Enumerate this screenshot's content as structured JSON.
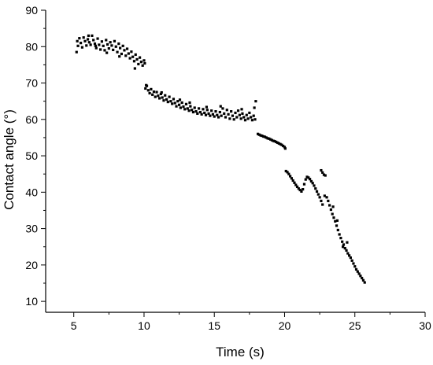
{
  "chart_data": {
    "type": "scatter",
    "title": "",
    "xlabel": "Time (s)",
    "ylabel": "Contact angle (°)",
    "xlim": [
      3,
      30
    ],
    "ylim": [
      7,
      90
    ],
    "x_ticks": [
      5,
      10,
      15,
      20,
      25,
      30
    ],
    "y_ticks": [
      10,
      20,
      30,
      40,
      50,
      60,
      70,
      80,
      90
    ],
    "grid": false,
    "marker_color": "#000000",
    "series": [
      {
        "points": [
          [
            5.2,
            78.5
          ],
          [
            5.3,
            80.2
          ],
          [
            5.4,
            82.3
          ],
          [
            5.5,
            81.0
          ],
          [
            5.6,
            79.8
          ],
          [
            5.7,
            82.5
          ],
          [
            5.8,
            81.5
          ],
          [
            5.9,
            80.3
          ],
          [
            6.0,
            82.0
          ],
          [
            6.1,
            81.2
          ],
          [
            6.2,
            80.5
          ],
          [
            6.3,
            83.0
          ],
          [
            6.4,
            81.8
          ],
          [
            6.5,
            80.8
          ],
          [
            6.6,
            79.6
          ],
          [
            6.7,
            82.2
          ],
          [
            6.8,
            80.5
          ],
          [
            6.9,
            79.2
          ],
          [
            7.0,
            81.4
          ],
          [
            7.1,
            80.2
          ],
          [
            7.2,
            79.0
          ],
          [
            7.3,
            81.8
          ],
          [
            7.4,
            80.6
          ],
          [
            7.5,
            79.5
          ],
          [
            7.6,
            81.2
          ],
          [
            7.7,
            80.3
          ],
          [
            7.8,
            79.1
          ],
          [
            7.9,
            81.5
          ],
          [
            8.0,
            80.0
          ],
          [
            8.1,
            78.5
          ],
          [
            8.2,
            80.8
          ],
          [
            8.3,
            79.6
          ],
          [
            8.4,
            78.0
          ],
          [
            8.5,
            80.2
          ],
          [
            8.6,
            79.0
          ],
          [
            8.7,
            77.5
          ],
          [
            8.8,
            79.4
          ],
          [
            8.9,
            78.1
          ],
          [
            9.0,
            76.8
          ],
          [
            9.1,
            78.6
          ],
          [
            9.2,
            77.2
          ],
          [
            9.3,
            76.0
          ],
          [
            9.4,
            77.8
          ],
          [
            9.5,
            76.5
          ],
          [
            9.6,
            75.2
          ],
          [
            9.7,
            77.0
          ],
          [
            9.8,
            75.8
          ],
          [
            9.9,
            74.8
          ],
          [
            10.0,
            76.2
          ],
          [
            10.05,
            75.4
          ],
          [
            9.35,
            74.0
          ],
          [
            6.05,
            83.0
          ],
          [
            5.25,
            81.5
          ],
          [
            8.25,
            77.3
          ],
          [
            7.35,
            78.3
          ],
          [
            6.55,
            80.2
          ],
          [
            10.1,
            68.5
          ],
          [
            10.2,
            69.2
          ],
          [
            10.3,
            68.0
          ],
          [
            10.4,
            67.2
          ],
          [
            10.5,
            68.3
          ],
          [
            10.6,
            66.8
          ],
          [
            10.7,
            67.6
          ],
          [
            10.8,
            66.2
          ],
          [
            10.9,
            67.5
          ],
          [
            11.0,
            66.5
          ],
          [
            11.1,
            65.8
          ],
          [
            11.2,
            67.0
          ],
          [
            11.3,
            66.0
          ],
          [
            11.4,
            65.2
          ],
          [
            11.5,
            66.6
          ],
          [
            11.6,
            65.5
          ],
          [
            11.7,
            64.8
          ],
          [
            11.8,
            66.2
          ],
          [
            11.9,
            65.0
          ],
          [
            12.0,
            64.3
          ],
          [
            12.1,
            65.6
          ],
          [
            12.2,
            64.5
          ],
          [
            12.3,
            63.6
          ],
          [
            12.4,
            65.0
          ],
          [
            12.5,
            64.0
          ],
          [
            12.6,
            63.2
          ],
          [
            12.7,
            64.6
          ],
          [
            12.8,
            63.5
          ],
          [
            12.9,
            62.8
          ],
          [
            13.0,
            64.2
          ],
          [
            13.1,
            63.0
          ],
          [
            13.2,
            62.4
          ],
          [
            13.3,
            63.6
          ],
          [
            13.4,
            62.6
          ],
          [
            13.5,
            62.0
          ],
          [
            13.6,
            63.2
          ],
          [
            13.7,
            62.2
          ],
          [
            13.8,
            61.6
          ],
          [
            13.9,
            63.0
          ],
          [
            14.0,
            62.0
          ],
          [
            14.1,
            61.4
          ],
          [
            14.2,
            62.8
          ],
          [
            14.3,
            61.8
          ],
          [
            14.4,
            61.2
          ],
          [
            14.5,
            62.6
          ],
          [
            14.6,
            61.6
          ],
          [
            14.7,
            61.0
          ],
          [
            14.8,
            62.4
          ],
          [
            14.9,
            61.4
          ],
          [
            15.0,
            60.8
          ],
          [
            15.1,
            62.2
          ],
          [
            15.2,
            61.2
          ],
          [
            15.3,
            60.6
          ],
          [
            15.4,
            62.0
          ],
          [
            15.5,
            61.0
          ],
          [
            15.6,
            63.0
          ],
          [
            15.7,
            61.6
          ],
          [
            15.8,
            60.6
          ],
          [
            15.9,
            62.6
          ],
          [
            16.0,
            61.4
          ],
          [
            16.1,
            60.2
          ],
          [
            16.2,
            62.2
          ],
          [
            16.3,
            61.0
          ],
          [
            16.4,
            60.0
          ],
          [
            16.5,
            61.8
          ],
          [
            16.6,
            60.6
          ],
          [
            16.7,
            62.4
          ],
          [
            16.8,
            61.2
          ],
          [
            16.9,
            60.2
          ],
          [
            17.0,
            61.6
          ],
          [
            17.1,
            60.6
          ],
          [
            17.2,
            59.8
          ],
          [
            17.3,
            61.2
          ],
          [
            17.4,
            60.2
          ],
          [
            17.5,
            61.8
          ],
          [
            17.6,
            60.6
          ],
          [
            17.7,
            59.8
          ],
          [
            17.8,
            61.0
          ],
          [
            17.9,
            60.0
          ],
          [
            17.95,
            65.0
          ],
          [
            17.85,
            63.2
          ],
          [
            16.95,
            62.8
          ],
          [
            15.45,
            63.6
          ],
          [
            13.25,
            64.6
          ],
          [
            14.45,
            63.4
          ],
          [
            11.25,
            67.4
          ],
          [
            12.55,
            65.4
          ],
          [
            10.15,
            69.4
          ],
          [
            18.1,
            56.0
          ],
          [
            18.2,
            55.8
          ],
          [
            18.3,
            55.6
          ],
          [
            18.4,
            55.5
          ],
          [
            18.5,
            55.3
          ],
          [
            18.6,
            55.2
          ],
          [
            18.7,
            55.0
          ],
          [
            18.8,
            54.8
          ],
          [
            18.9,
            54.7
          ],
          [
            19.0,
            54.5
          ],
          [
            19.1,
            54.3
          ],
          [
            19.2,
            54.1
          ],
          [
            19.3,
            54.0
          ],
          [
            19.4,
            53.8
          ],
          [
            19.5,
            53.6
          ],
          [
            19.6,
            53.4
          ],
          [
            19.7,
            53.2
          ],
          [
            19.8,
            53.0
          ],
          [
            19.9,
            52.7
          ],
          [
            20.0,
            52.4
          ],
          [
            20.05,
            52.0
          ],
          [
            20.1,
            45.8
          ],
          [
            20.2,
            45.5
          ],
          [
            20.3,
            45.0
          ],
          [
            20.4,
            44.4
          ],
          [
            20.5,
            43.8
          ],
          [
            20.6,
            43.2
          ],
          [
            20.7,
            42.6
          ],
          [
            20.8,
            42.0
          ],
          [
            20.9,
            41.5
          ],
          [
            21.0,
            41.0
          ],
          [
            21.1,
            40.6
          ],
          [
            21.2,
            40.2
          ],
          [
            21.3,
            40.8
          ],
          [
            21.4,
            42.2
          ],
          [
            21.5,
            43.5
          ],
          [
            21.6,
            44.2
          ],
          [
            21.7,
            44.0
          ],
          [
            21.8,
            43.6
          ],
          [
            21.9,
            43.0
          ],
          [
            22.0,
            42.5
          ],
          [
            22.1,
            41.8
          ],
          [
            22.2,
            41.0
          ],
          [
            22.3,
            40.2
          ],
          [
            22.4,
            39.4
          ],
          [
            22.5,
            38.6
          ],
          [
            22.6,
            37.6
          ],
          [
            22.7,
            36.6
          ],
          [
            22.6,
            46.0
          ],
          [
            22.7,
            45.4
          ],
          [
            22.8,
            44.8
          ],
          [
            22.9,
            44.6
          ],
          [
            22.85,
            39.0
          ],
          [
            23.0,
            38.6
          ],
          [
            23.1,
            37.6
          ],
          [
            23.2,
            36.4
          ],
          [
            23.3,
            35.2
          ],
          [
            23.4,
            34.0
          ],
          [
            23.5,
            33.0
          ],
          [
            23.6,
            32.0
          ],
          [
            23.7,
            30.8
          ],
          [
            23.8,
            29.6
          ],
          [
            23.9,
            28.4
          ],
          [
            24.0,
            27.4
          ],
          [
            24.1,
            26.4
          ],
          [
            24.2,
            25.6
          ],
          [
            24.3,
            24.6
          ],
          [
            24.4,
            24.0
          ],
          [
            24.5,
            23.2
          ],
          [
            24.6,
            22.6
          ],
          [
            24.7,
            22.0
          ],
          [
            24.8,
            21.2
          ],
          [
            24.9,
            20.4
          ],
          [
            25.0,
            19.6
          ],
          [
            25.1,
            18.8
          ],
          [
            25.2,
            18.2
          ],
          [
            25.3,
            17.6
          ],
          [
            25.4,
            17.0
          ],
          [
            25.5,
            16.4
          ],
          [
            25.6,
            15.8
          ],
          [
            25.7,
            15.2
          ],
          [
            24.15,
            25.0
          ],
          [
            23.75,
            32.2
          ],
          [
            24.45,
            26.2
          ],
          [
            23.45,
            36.0
          ]
        ]
      }
    ]
  }
}
